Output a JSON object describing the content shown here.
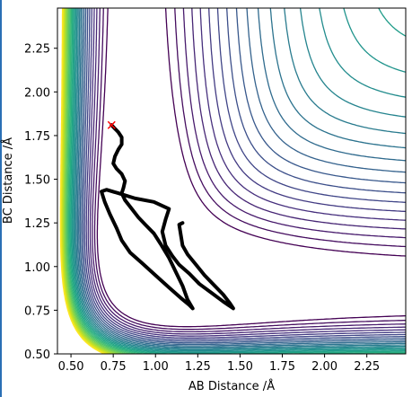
{
  "chart_data": {
    "type": "contour",
    "xlabel": "AB Distance /Å",
    "ylabel": "BC Distance /Å",
    "xlim": [
      0.42,
      2.48
    ],
    "ylim": [
      0.5,
      2.48
    ],
    "x_ticks": [
      "0.50",
      "0.75",
      "1.00",
      "1.25",
      "1.50",
      "1.75",
      "2.00",
      "2.25"
    ],
    "y_ticks": [
      "0.50",
      "0.75",
      "1.00",
      "1.25",
      "1.50",
      "1.75",
      "2.00",
      "2.25"
    ],
    "colormap": "viridis",
    "contour_levels": 30,
    "grid": false,
    "start_marker": {
      "symbol": "x",
      "color": "#ff0000",
      "x": 0.74,
      "y": 1.81
    },
    "trajectory": {
      "color": "#000000",
      "points": [
        [
          0.74,
          1.81
        ],
        [
          0.76,
          1.79
        ],
        [
          0.78,
          1.77
        ],
        [
          0.8,
          1.74
        ],
        [
          0.8,
          1.7
        ],
        [
          0.78,
          1.67
        ],
        [
          0.76,
          1.63
        ],
        [
          0.75,
          1.59
        ],
        [
          0.77,
          1.56
        ],
        [
          0.8,
          1.53
        ],
        [
          0.82,
          1.49
        ],
        [
          0.81,
          1.45
        ],
        [
          0.8,
          1.42
        ],
        [
          0.82,
          1.38
        ],
        [
          0.86,
          1.33
        ],
        [
          0.9,
          1.28
        ],
        [
          0.94,
          1.24
        ],
        [
          0.99,
          1.19
        ],
        [
          1.03,
          1.13
        ],
        [
          1.08,
          1.05
        ],
        [
          1.12,
          0.97
        ],
        [
          1.16,
          0.89
        ],
        [
          1.19,
          0.81
        ],
        [
          1.22,
          0.76
        ],
        [
          1.2,
          0.78
        ],
        [
          1.15,
          0.82
        ],
        [
          1.08,
          0.88
        ],
        [
          1.0,
          0.95
        ],
        [
          0.92,
          1.02
        ],
        [
          0.85,
          1.08
        ],
        [
          0.8,
          1.15
        ],
        [
          0.77,
          1.22
        ],
        [
          0.73,
          1.3
        ],
        [
          0.7,
          1.37
        ],
        [
          0.68,
          1.43
        ],
        [
          0.71,
          1.44
        ],
        [
          0.78,
          1.42
        ],
        [
          0.88,
          1.39
        ],
        [
          0.99,
          1.37
        ],
        [
          1.08,
          1.33
        ],
        [
          1.06,
          1.27
        ],
        [
          1.04,
          1.2
        ],
        [
          1.06,
          1.12
        ],
        [
          1.1,
          1.06
        ],
        [
          1.14,
          1.01
        ],
        [
          1.2,
          0.96
        ],
        [
          1.26,
          0.9
        ],
        [
          1.33,
          0.85
        ],
        [
          1.4,
          0.8
        ],
        [
          1.46,
          0.76
        ],
        [
          1.44,
          0.79
        ],
        [
          1.4,
          0.84
        ],
        [
          1.35,
          0.89
        ],
        [
          1.29,
          0.95
        ],
        [
          1.24,
          1.01
        ],
        [
          1.19,
          1.07
        ],
        [
          1.16,
          1.12
        ],
        [
          1.15,
          1.18
        ],
        [
          1.14,
          1.24
        ],
        [
          1.16,
          1.25
        ]
      ]
    },
    "contour_colors": [
      "#440154",
      "#481a6c",
      "#472f7d",
      "#414487",
      "#39568c",
      "#31688e",
      "#2a788e",
      "#23888e",
      "#1f988b",
      "#22a884",
      "#35b779",
      "#54c568",
      "#7ad151",
      "#a5db36",
      "#d2e21b",
      "#fde725"
    ]
  }
}
